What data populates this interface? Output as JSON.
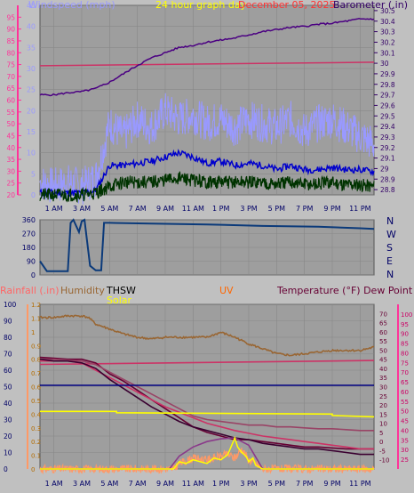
{
  "page": {
    "title": "24 hour graph day",
    "date": "December 05, 2025"
  },
  "colors": {
    "background": "#c0c0c0",
    "plot": "#9e9e9e",
    "wind_label": "#9999ff",
    "barometer_label": "#330066",
    "title": "#ffff00",
    "date": "#ff3333",
    "rain_axis": "#ff6666",
    "humidity_axis": "#996633",
    "solar": "#ffff00",
    "thsw": "#000000",
    "uv": "#ff6600",
    "temperature": "#660033",
    "dew_point": "#cc3366",
    "dir": "#0b3a7a",
    "x_tick": "#000066"
  },
  "x_ticks": [
    "1 AM",
    "3 AM",
    "5 AM",
    "7 AM",
    "9 AM",
    "11 AM",
    "1 PM",
    "3 PM",
    "5 PM",
    "7 PM",
    "9 PM",
    "11 PM"
  ],
  "chart_data": [
    {
      "type": "line",
      "x_range": [
        0,
        24
      ],
      "left_axis": {
        "label": "Windspeed (mph)",
        "ylim": [
          0,
          45
        ],
        "ticks": [
          "45",
          "40",
          "35",
          "30",
          "25",
          "20",
          "15",
          "10",
          "5",
          "0"
        ]
      },
      "left_outer_axis": {
        "ylim": [
          20,
          100
        ],
        "ticks": [
          "95",
          "90",
          "85",
          "80",
          "75",
          "70",
          "65",
          "60",
          "55",
          "50",
          "45",
          "40",
          "35",
          "30",
          "25",
          "20"
        ]
      },
      "right_axis": {
        "label": "Barometer (.in)",
        "ylim": [
          28.75,
          30.55
        ],
        "ticks": [
          "30.5",
          "30.4",
          "30.3",
          "30.2",
          "30.1",
          "30",
          "29.9",
          "29.8",
          "29.7",
          "29.6",
          "29.5",
          "29.4",
          "29.3",
          "29.2",
          "29.1",
          "29",
          "28.9",
          "28.8"
        ]
      },
      "series": [
        {
          "name": "Barometer (.in)",
          "axis": "right",
          "color": "#4b0082",
          "x": [
            0,
            1,
            2,
            3,
            4,
            5,
            6,
            7,
            8,
            9,
            10,
            11,
            12,
            13,
            14,
            15,
            16,
            17,
            18,
            19,
            20,
            21,
            22,
            23,
            24
          ],
          "values": [
            29.7,
            29.7,
            29.72,
            29.73,
            29.76,
            29.82,
            29.9,
            29.98,
            30.05,
            30.1,
            30.15,
            30.17,
            30.2,
            30.22,
            30.24,
            30.27,
            30.3,
            30.32,
            30.34,
            30.35,
            30.37,
            30.38,
            30.4,
            30.42,
            30.42
          ]
        },
        {
          "name": "",
          "axis": "left_outer",
          "color": "#cc3366",
          "x": [
            0,
            24
          ],
          "values": [
            74.5,
            76
          ]
        },
        {
          "name": "",
          "axis": "left",
          "color": "#9999ff",
          "x": [
            0,
            1,
            2,
            3,
            4,
            5,
            6,
            7,
            8,
            9,
            10,
            11,
            12,
            13,
            14,
            15,
            16,
            17,
            18,
            19,
            20,
            21,
            22,
            23,
            24
          ],
          "values": [
            3,
            2,
            3,
            2,
            4,
            17,
            14,
            18,
            16,
            20,
            18,
            19,
            17,
            18,
            16,
            18,
            17,
            16,
            18,
            15,
            17,
            18,
            16,
            14,
            12
          ]
        },
        {
          "name": "",
          "axis": "left",
          "color": "#0000cc",
          "x": [
            0,
            1,
            2,
            3,
            4,
            5,
            6,
            7,
            8,
            9,
            10,
            11,
            12,
            13,
            14,
            15,
            16,
            17,
            18,
            19,
            20,
            21,
            22,
            23,
            24
          ],
          "values": [
            0.5,
            0.5,
            0.5,
            0.5,
            1,
            7,
            7,
            7.5,
            8,
            9,
            10,
            9,
            7.5,
            8,
            7,
            7.5,
            7,
            6,
            7,
            6,
            6,
            6.5,
            6,
            6,
            5.5
          ]
        },
        {
          "name": "",
          "axis": "left",
          "color": "#003300",
          "x": [
            0,
            1,
            2,
            3,
            4,
            5,
            6,
            7,
            8,
            9,
            10,
            11,
            12,
            13,
            14,
            15,
            16,
            17,
            18,
            19,
            20,
            21,
            22,
            23,
            24
          ],
          "values": [
            0,
            0,
            0,
            0,
            0.5,
            2,
            3,
            3,
            3,
            3.5,
            4,
            3.5,
            3,
            3,
            3,
            3,
            3,
            2.5,
            3,
            2.5,
            2.5,
            3,
            2.5,
            2.5,
            2
          ]
        }
      ]
    },
    {
      "type": "line",
      "x_range": [
        0,
        24
      ],
      "left_axis": {
        "ylim": [
          0,
          360
        ],
        "ticks": [
          "360",
          "270",
          "180",
          "90",
          "0"
        ]
      },
      "right_axis": {
        "ticks": [
          "N",
          "W",
          "S",
          "E",
          "N"
        ]
      },
      "series": [
        {
          "name": "",
          "color": "#0b3a7a",
          "x": [
            0,
            0.5,
            2,
            2.2,
            2.4,
            2.8,
            3.0,
            3.2,
            3.6,
            4.0,
            4.4,
            4.6,
            5,
            8,
            12,
            16,
            20,
            23,
            24
          ],
          "values": [
            90,
            25,
            25,
            340,
            360,
            280,
            350,
            360,
            60,
            30,
            30,
            340,
            340,
            335,
            330,
            320,
            315,
            305,
            300
          ]
        }
      ]
    },
    {
      "type": "line",
      "x_range": [
        0,
        24
      ],
      "axes": [
        {
          "label": "Rainfall (.in)",
          "ylim": [
            0,
            100
          ],
          "ticks": [
            "100",
            "90",
            "80",
            "70",
            "60",
            "50",
            "40",
            "30",
            "20",
            "10",
            "0"
          ]
        },
        {
          "label": "Humidity",
          "ylim": [
            0,
            1.2
          ],
          "ticks": [
            "1.2",
            "1.1",
            "1",
            "0.9",
            "0.8",
            "0.7",
            "0.6",
            "0.5",
            "0.4",
            "0.3",
            "0.2",
            "0.1",
            "0"
          ]
        },
        {
          "label": "Temperature (°F) Dew Point (°F)",
          "ylim": [
            -15,
            75
          ],
          "ticks": [
            "70",
            "65",
            "60",
            "55",
            "50",
            "45",
            "40",
            "35",
            "30",
            "25",
            "20",
            "15",
            "10",
            "5",
            "0",
            "-5",
            "-10"
          ]
        },
        {
          "ylim": [
            20,
            105
          ],
          "ticks": [
            "100",
            "95",
            "90",
            "85",
            "80",
            "75",
            "70",
            "65",
            "60",
            "55",
            "50",
            "45",
            "40",
            "35",
            "30",
            "25"
          ]
        }
      ],
      "labels": {
        "rainfall": "Rainfall (.in)",
        "humidity": "Humidity",
        "thsw": "THSW",
        "solar": "Solar",
        "uv": "UV",
        "temperature_dew": "Temperature (°F) Dew Point (°F)"
      },
      "series": [
        {
          "name": "Humidity",
          "axis": "rain",
          "color": "#996633",
          "x": [
            0,
            1,
            2,
            3,
            3.5,
            4,
            5,
            6,
            7,
            8,
            9,
            10,
            11,
            12,
            13,
            14,
            15,
            16,
            17,
            18,
            19,
            20,
            21,
            22,
            23,
            24
          ],
          "values": [
            92,
            92,
            93,
            93,
            92,
            88,
            85,
            82,
            80,
            79,
            80,
            80,
            80,
            80,
            83,
            80,
            76,
            73,
            70,
            69,
            70,
            71,
            72,
            72,
            72,
            74
          ]
        },
        {
          "name": "",
          "axis": "right_outer",
          "color": "#cc3366",
          "x": [
            0,
            24
          ],
          "values": [
            74,
            76
          ]
        },
        {
          "name": "",
          "axis": "temp",
          "color": "#660033",
          "x": [
            0,
            1,
            2,
            3,
            4,
            5,
            6,
            7,
            8,
            9,
            10,
            11,
            12,
            13,
            14,
            15,
            16,
            17,
            18,
            19,
            20,
            21,
            22,
            23,
            24
          ],
          "values": [
            46,
            45.5,
            45,
            45,
            43,
            37,
            33,
            28,
            23,
            18,
            13,
            8,
            5,
            3,
            1,
            1,
            0,
            -1,
            -2,
            -3,
            -3,
            -3.5,
            -4,
            -4,
            -4
          ]
        },
        {
          "name": "",
          "axis": "temp",
          "color": "#cc3366",
          "x": [
            0,
            1,
            2,
            3,
            4,
            5,
            6,
            7,
            8,
            9,
            10,
            11,
            12,
            13,
            14,
            15,
            16,
            17,
            18,
            19,
            20,
            21,
            22,
            23,
            24
          ],
          "values": [
            44,
            44,
            44,
            43,
            39,
            35,
            31,
            27,
            23,
            19,
            16,
            13,
            10,
            8,
            6,
            4.5,
            3,
            2,
            1,
            0,
            -1,
            -2,
            -3,
            -4,
            -4
          ]
        },
        {
          "name": "",
          "axis": "temp",
          "color": "#994466",
          "x": [
            0,
            1,
            2,
            3,
            4,
            5,
            6,
            7,
            8,
            9,
            10,
            11,
            12,
            13,
            14,
            15,
            16,
            17,
            18,
            19,
            20,
            21,
            22,
            23,
            24
          ],
          "values": [
            45,
            45,
            44.5,
            44,
            42,
            38,
            34,
            30,
            26,
            22,
            18,
            14,
            12,
            11,
            10,
            9,
            9,
            8,
            8,
            7.5,
            7,
            7,
            6.5,
            6,
            6
          ]
        },
        {
          "name": "THSW",
          "axis": "temp",
          "color": "#ff9966",
          "x": [
            0,
            9.6,
            10,
            11,
            12,
            13,
            13.5,
            14,
            14.5,
            15,
            15.5,
            16,
            24
          ],
          "values": [
            -15,
            -15,
            -12,
            -9,
            -10,
            -8,
            -7,
            -9,
            -4,
            -10,
            -12,
            -15,
            -15
          ]
        },
        {
          "name": "",
          "axis": "temp",
          "color": "#3a0030",
          "x": [
            0,
            1,
            2,
            3,
            4,
            5,
            6,
            7,
            8,
            9,
            10,
            11,
            12,
            13,
            14,
            15,
            16,
            17,
            18,
            19,
            20,
            21,
            22,
            23,
            24
          ],
          "values": [
            45,
            44,
            44,
            43,
            40,
            34,
            29,
            24,
            19,
            15,
            11,
            8,
            6,
            4,
            2,
            1,
            -1,
            -2,
            -3,
            -4,
            -4,
            -5,
            -6,
            -7,
            -7
          ]
        },
        {
          "name": "UV",
          "axis": "temp",
          "color": "#8a3a8a",
          "x": [
            0,
            9.3,
            10,
            11,
            12,
            13,
            14,
            15,
            16,
            24
          ],
          "values": [
            -15,
            -15,
            -8,
            -3,
            0,
            1.5,
            2,
            -2,
            -15,
            -15
          ]
        },
        {
          "name": "Solar",
          "axis": "temp",
          "color": "#ffff00",
          "x": [
            0,
            9.6,
            10,
            10.5,
            11,
            11.5,
            12,
            12.5,
            13,
            13.5,
            14,
            14.2,
            14.5,
            14.8,
            15,
            15.3,
            15.5,
            16,
            24
          ],
          "values": [
            -15,
            -15,
            -11,
            -12,
            -10,
            -11,
            -12,
            -9,
            -10,
            -7,
            2,
            -3,
            -6,
            -8,
            -11,
            -9,
            -13,
            -15,
            -15
          ]
        },
        {
          "name": "",
          "axis": "humidity",
          "color": "#ffff00",
          "x": [
            0,
            5.5,
            5.5,
            21,
            21,
            24
          ],
          "values": [
            0.42,
            0.42,
            0.41,
            0.4,
            0.39,
            0.38
          ]
        },
        {
          "name": "",
          "axis": "humidity",
          "color": "#000080",
          "x": [
            0,
            24
          ],
          "values": [
            0.61,
            0.61
          ]
        }
      ]
    }
  ]
}
